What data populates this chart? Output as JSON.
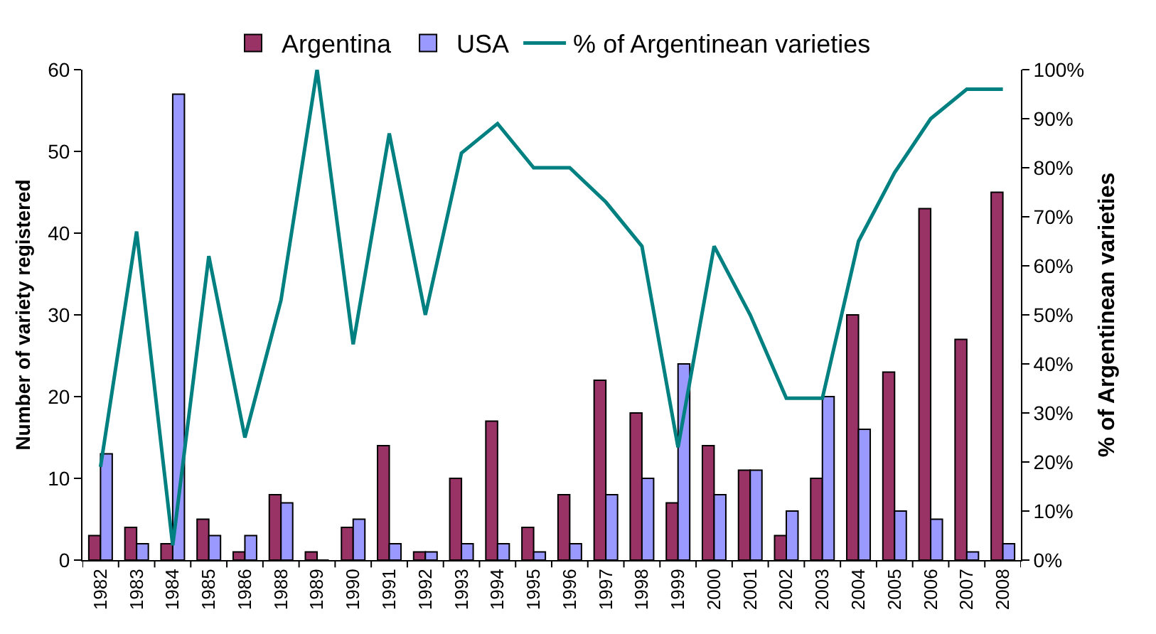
{
  "chart_data": {
    "type": "bar",
    "ylabel": "Number of variety registered",
    "y2label": "% of Argentinean varieties",
    "categories": [
      "1982",
      "1983",
      "1984",
      "1985",
      "1986",
      "1988",
      "1989",
      "1990",
      "1991",
      "1992",
      "1993",
      "1994",
      "1995",
      "1996",
      "1997",
      "1998",
      "1999",
      "2000",
      "2001",
      "2002",
      "2003",
      "2004",
      "2005",
      "2006",
      "2007",
      "2008"
    ],
    "series": [
      {
        "name": "Argentina",
        "color": "#993366",
        "values": [
          3,
          4,
          2,
          5,
          1,
          8,
          1,
          4,
          14,
          1,
          10,
          17,
          4,
          8,
          22,
          18,
          7,
          14,
          11,
          3,
          10,
          30,
          23,
          43,
          27,
          45
        ]
      },
      {
        "name": "USA",
        "color": "#9999ff",
        "values": [
          13,
          2,
          57,
          3,
          3,
          7,
          0,
          5,
          2,
          1,
          2,
          2,
          1,
          2,
          8,
          10,
          24,
          8,
          11,
          6,
          20,
          16,
          6,
          5,
          1,
          2
        ]
      },
      {
        "name": "% of Argentinean varieties",
        "type": "line",
        "axis": "y2",
        "color": "#008080",
        "values": [
          19,
          67,
          3,
          62,
          25,
          53,
          100,
          44,
          87,
          50,
          83,
          89,
          80,
          80,
          73,
          64,
          23,
          64,
          50,
          33,
          33,
          65,
          79,
          90,
          96,
          96
        ]
      }
    ],
    "ylim": [
      0,
      60
    ],
    "yticks": [
      0,
      10,
      20,
      30,
      40,
      50,
      60
    ],
    "y2lim": [
      0,
      100
    ],
    "y2ticks": [
      {
        "value": 0,
        "label": "0%"
      },
      {
        "value": 10,
        "label": "10%"
      },
      {
        "value": 20,
        "label": "20%"
      },
      {
        "value": 30,
        "label": "30%"
      },
      {
        "value": 40,
        "label": "40%"
      },
      {
        "value": 50,
        "label": "50%"
      },
      {
        "value": 60,
        "label": "60%"
      },
      {
        "value": 70,
        "label": "70%"
      },
      {
        "value": 80,
        "label": "80%"
      },
      {
        "value": 90,
        "label": "90%"
      },
      {
        "value": 100,
        "label": "100%"
      }
    ],
    "grid": false,
    "legend": "top",
    "marker": "none",
    "line_style": "solid"
  }
}
